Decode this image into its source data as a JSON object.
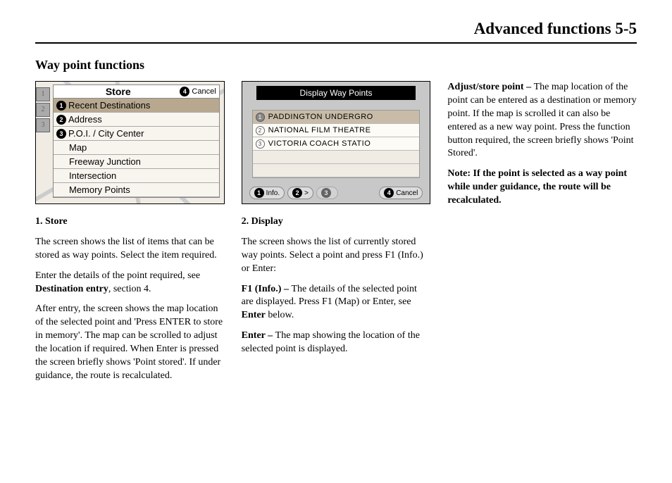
{
  "header": {
    "title": "Advanced functions   5-5"
  },
  "section_title": "Way point functions",
  "store_screenshot": {
    "title": "Store",
    "cancel_num": "4",
    "cancel_label": "Cancel",
    "left_tabs": [
      "1",
      "2",
      "3"
    ],
    "rows": [
      {
        "num": "1",
        "label": "Recent Destinations",
        "selected": true
      },
      {
        "num": "2",
        "label": "Address",
        "selected": false
      },
      {
        "num": "3",
        "label": "P.O.I. / City Center",
        "selected": false
      },
      {
        "num": "",
        "label": "Map",
        "selected": false,
        "indent": true
      },
      {
        "num": "",
        "label": "Freeway Junction",
        "selected": false,
        "indent": true
      },
      {
        "num": "",
        "label": "Intersection",
        "selected": false,
        "indent": true
      },
      {
        "num": "",
        "label": "Memory Points",
        "selected": false,
        "indent": true
      }
    ]
  },
  "display_screenshot": {
    "title": "Display Way Points",
    "rows": [
      {
        "num": "1",
        "label": "PADDINGTON UNDERGRO",
        "selected": true
      },
      {
        "num": "2",
        "label": "NATIONAL FILM THEATRE",
        "selected": false
      },
      {
        "num": "3",
        "label": "VICTORIA COACH STATIO",
        "selected": false
      },
      {
        "num": "",
        "label": "",
        "selected": false,
        "empty": true
      },
      {
        "num": "",
        "label": "",
        "selected": false,
        "empty": true
      }
    ],
    "footer": {
      "f1_num": "1",
      "f1_label": "Info.",
      "f2_num": "2",
      "f2_label": ">",
      "f3_num": "3",
      "f4_num": "4",
      "f4_label": "Cancel"
    }
  },
  "col1": {
    "h": "1.  Store",
    "p1": "The screen shows the list of items that can be stored as way points. Select the item required.",
    "p2a": "Enter the details of the point required, see ",
    "p2b": "Destination entry",
    "p2c": ", section 4.",
    "p3": "After entry, the screen shows the map location of the selected point and 'Press ENTER to store in memory'. The map can be scrolled to adjust the location if required. When Enter is pressed the screen briefly shows 'Point stored'. If under guidance, the route is recalculated."
  },
  "col2": {
    "h": "2.  Display",
    "p1": "The screen shows the list of currently stored way points. Select a point and press F1 (Info.) or Enter:",
    "p2a": "F1 (Info.) – ",
    "p2b": "The details of the selected point are displayed. Press F1 (Map) or Enter, see ",
    "p2c": "Enter",
    "p2d": " below.",
    "p3a": "Enter – ",
    "p3b": "The map showing the location of the selected point is displayed."
  },
  "col3": {
    "p1a": "Adjust/store point – ",
    "p1b": "The map location of the point can be entered as a destination or memory point. If the map is scrolled it can also be entered as a new way point. Press the function button required, the screen briefly shows 'Point Stored'.",
    "p2": "Note:  If the point is selected as a way point while under guidance, the route will be recalculated."
  }
}
